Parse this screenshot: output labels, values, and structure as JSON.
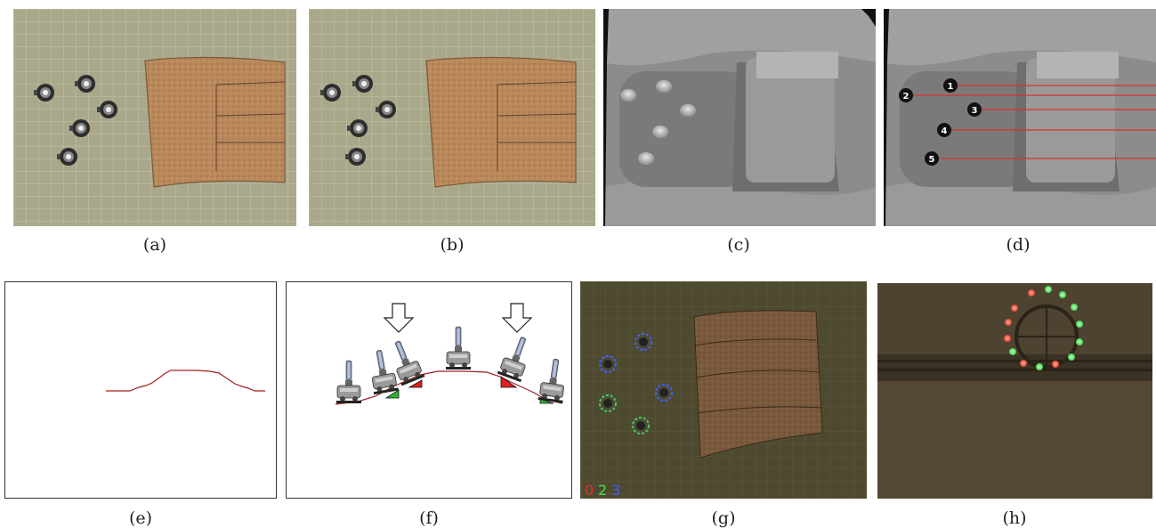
{
  "captions": {
    "a": "(a)",
    "b": "(b)",
    "c": "(c)",
    "d": "(d)",
    "e": "(e)",
    "f": "(f)",
    "g": "(g)",
    "h": "(h)"
  },
  "depth_markers": [
    "1",
    "2",
    "3",
    "4",
    "5"
  ],
  "robot_ids": {
    "id0": "0",
    "id2": "2",
    "id3": "3"
  },
  "colors": {
    "floor": "#b3b294",
    "board": "#b8875a",
    "depth_bg": "#8a8a8a",
    "profile_line": "#a02020",
    "marker_line": "#d83030",
    "led_red": "#e04030",
    "led_green": "#40e050",
    "ring_blue": "#4060ff",
    "ring_green": "#40d060"
  },
  "icons": [
    "robot-icon",
    "down-arrow-icon",
    "led-ring-icon"
  ]
}
